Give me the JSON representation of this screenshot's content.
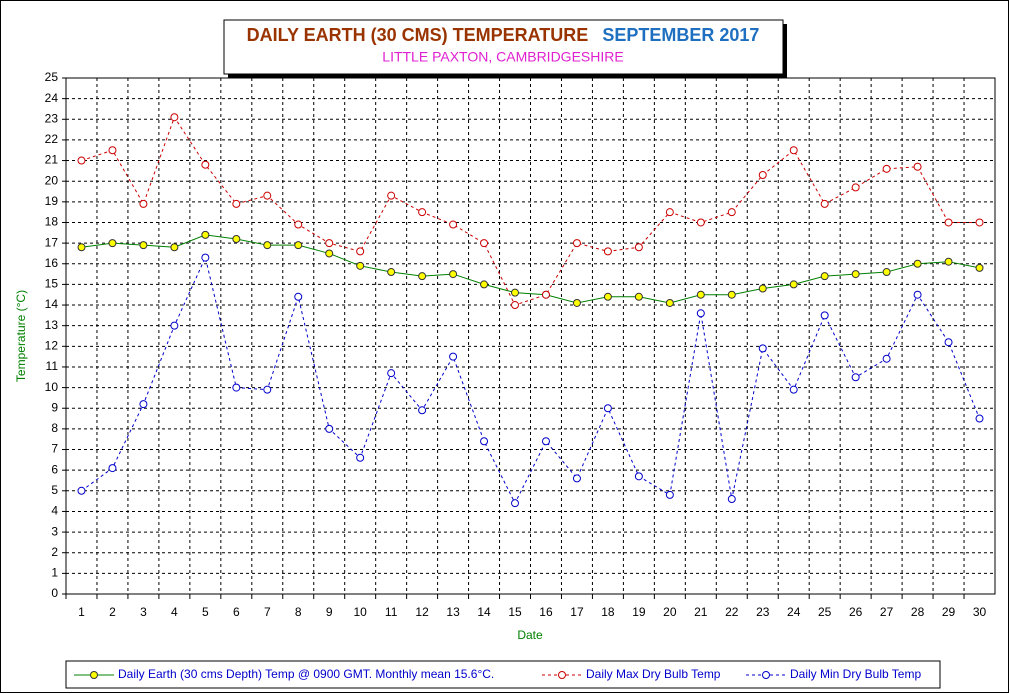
{
  "chart_data": {
    "type": "line",
    "title": "DAILY EARTH (30 CMS) TEMPERATURE",
    "title_month": "SEPTEMBER 2017",
    "subtitle": "LITTLE PAXTON, CAMBRIDGESHIRE",
    "x_label": "Date",
    "y_label": "Temperature (°C)",
    "categories": [
      "1",
      "2",
      "3",
      "4",
      "5",
      "6",
      "7",
      "8",
      "9",
      "10",
      "11",
      "12",
      "13",
      "14",
      "15",
      "16",
      "17",
      "18",
      "19",
      "20",
      "21",
      "22",
      "23",
      "24",
      "25",
      "26",
      "27",
      "28",
      "29",
      "30"
    ],
    "series": [
      {
        "name": "Daily Earth (30 cms Depth) Temp @ 0900 GMT. Monthly mean 15.6°C.",
        "color": "#008000",
        "marker_fill": "#ffff00",
        "dash": false,
        "values": [
          16.8,
          17.0,
          16.9,
          16.8,
          17.4,
          17.2,
          16.9,
          16.9,
          16.5,
          15.9,
          15.6,
          15.4,
          15.5,
          15.0,
          14.6,
          14.5,
          14.1,
          14.4,
          14.4,
          14.1,
          14.5,
          14.5,
          14.8,
          15.0,
          15.4,
          15.5,
          15.6,
          16.0,
          16.1,
          15.8
        ]
      },
      {
        "name": "Daily Max Dry Bulb Temp",
        "color": "#cc0000",
        "marker_fill": "#ffffff",
        "dash": true,
        "values": [
          21.0,
          21.5,
          18.9,
          23.1,
          20.8,
          18.9,
          19.3,
          17.9,
          17.0,
          16.6,
          19.3,
          18.5,
          17.9,
          17.0,
          14.0,
          14.5,
          17.0,
          16.6,
          16.8,
          18.5,
          18.0,
          18.5,
          20.3,
          21.5,
          18.9,
          19.7,
          20.6,
          20.7,
          18.0,
          18.0
        ]
      },
      {
        "name": "Daily Min Dry Bulb Temp",
        "color": "#0000cc",
        "marker_fill": "#ffffff",
        "dash": true,
        "values": [
          5.0,
          6.1,
          9.2,
          13.0,
          16.3,
          10.0,
          9.9,
          14.4,
          8.0,
          6.6,
          10.7,
          8.9,
          11.5,
          7.4,
          4.4,
          7.4,
          5.6,
          9.0,
          5.7,
          4.8,
          13.6,
          4.6,
          11.9,
          9.9,
          13.5,
          10.5,
          11.4,
          14.5,
          12.2,
          8.5
        ]
      }
    ],
    "ylim": [
      0,
      25
    ],
    "yticks": [
      0,
      1,
      2,
      3,
      4,
      5,
      6,
      7,
      8,
      9,
      10,
      11,
      12,
      13,
      14,
      15,
      16,
      17,
      18,
      19,
      20,
      21,
      22,
      23,
      24,
      25
    ],
    "grid": true
  }
}
